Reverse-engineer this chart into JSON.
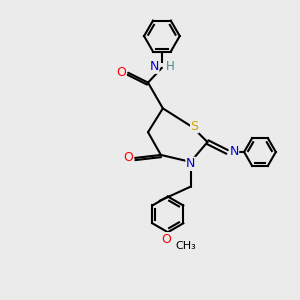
{
  "bg_color": "#ebebeb",
  "bond_color": "#000000",
  "atom_colors": {
    "N": "#0000cc",
    "O": "#ff0000",
    "S": "#ccaa00",
    "H": "#4a8a8a",
    "C": "#000000"
  },
  "figsize": [
    3.0,
    3.0
  ],
  "dpi": 100
}
